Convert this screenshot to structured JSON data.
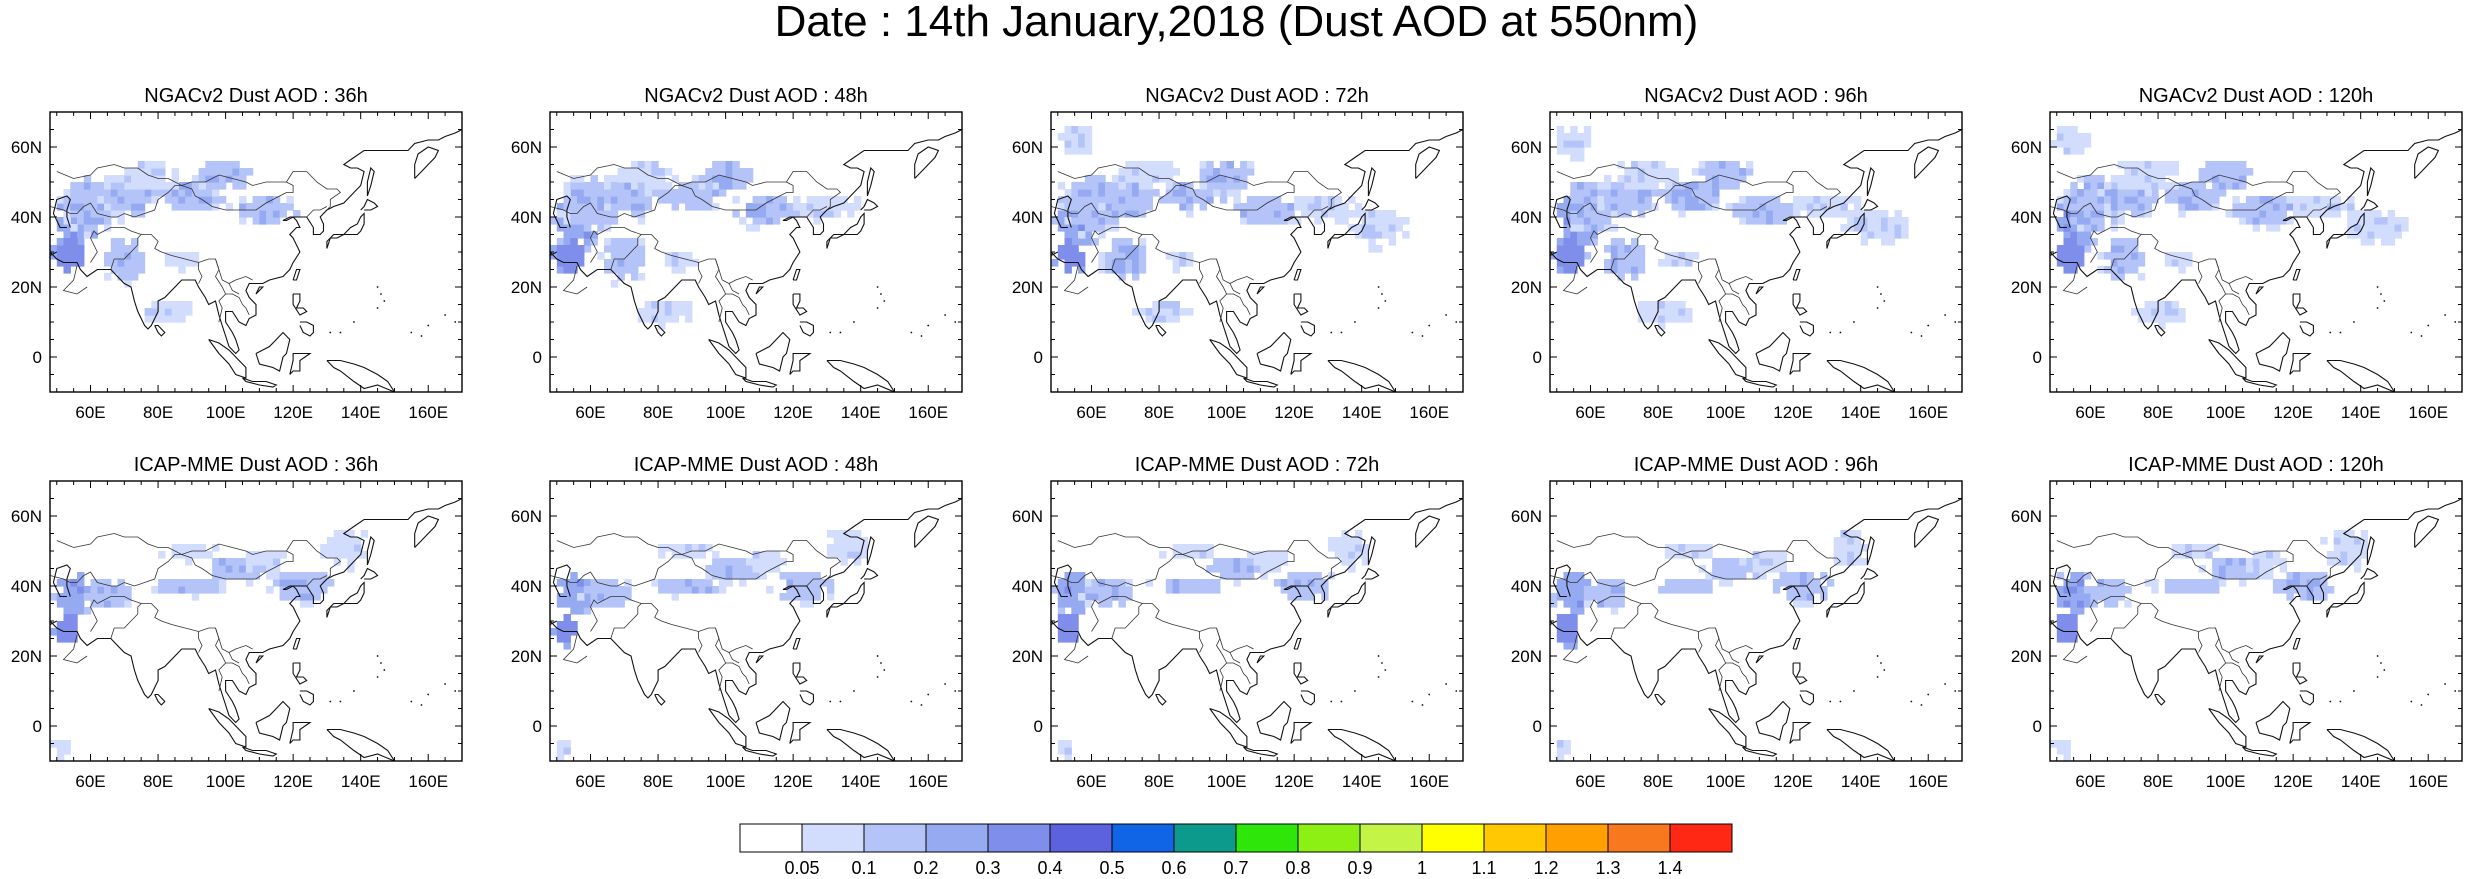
{
  "page": {
    "title": "Date : 14th January,2018 (Dust AOD at 550nm)"
  },
  "axes": {
    "x_ticks": [
      "60E",
      "80E",
      "100E",
      "120E",
      "140E",
      "160E"
    ],
    "x_values": [
      60,
      80,
      100,
      120,
      140,
      160
    ],
    "y_ticks": [
      "60N",
      "40N",
      "20N",
      "0"
    ],
    "y_values": [
      60,
      40,
      20,
      0
    ],
    "lon_range": [
      48,
      170
    ],
    "lat_range": [
      -10,
      70
    ]
  },
  "panels": [
    {
      "title": "NGACv2 Dust AOD : 36h",
      "model": "NGACv2",
      "lead": "36h",
      "intensity": 0.55,
      "extent": 0.75
    },
    {
      "title": "NGACv2 Dust AOD : 48h",
      "model": "NGACv2",
      "lead": "48h",
      "intensity": 0.6,
      "extent": 0.8
    },
    {
      "title": "NGACv2 Dust AOD : 72h",
      "model": "NGACv2",
      "lead": "72h",
      "intensity": 0.8,
      "extent": 1.0
    },
    {
      "title": "NGACv2 Dust AOD : 96h",
      "model": "NGACv2",
      "lead": "96h",
      "intensity": 0.75,
      "extent": 1.0
    },
    {
      "title": "NGACv2 Dust AOD : 120h",
      "model": "NGACv2",
      "lead": "120h",
      "intensity": 0.7,
      "extent": 0.95
    },
    {
      "title": "ICAP-MME Dust AOD : 36h",
      "model": "ICAP-MME",
      "lead": "36h",
      "intensity": 0.5,
      "extent": 0.7
    },
    {
      "title": "ICAP-MME Dust AOD : 48h",
      "model": "ICAP-MME",
      "lead": "48h",
      "intensity": 0.5,
      "extent": 0.85
    },
    {
      "title": "ICAP-MME Dust AOD : 72h",
      "model": "ICAP-MME",
      "lead": "72h",
      "intensity": 0.55,
      "extent": 0.8
    },
    {
      "title": "ICAP-MME Dust AOD : 96h",
      "model": "ICAP-MME",
      "lead": "96h",
      "intensity": 0.55,
      "extent": 0.75
    },
    {
      "title": "ICAP-MME Dust AOD : 120h",
      "model": "ICAP-MME",
      "lead": "120h",
      "intensity": 0.55,
      "extent": 0.75
    }
  ],
  "colorbar": {
    "labels": [
      "0.05",
      "0.1",
      "0.2",
      "0.3",
      "0.4",
      "0.5",
      "0.6",
      "0.7",
      "0.8",
      "0.9",
      "1",
      "1.1",
      "1.2",
      "1.3",
      "1.4"
    ],
    "colors": [
      "#ffffff",
      "#d2dcfc",
      "#b4c4f8",
      "#96aaf2",
      "#7f8eea",
      "#5c62dd",
      "#1064e6",
      "#0c9a8c",
      "#2ee60a",
      "#8cf014",
      "#c4f446",
      "#ffff00",
      "#ffc800",
      "#ffa000",
      "#f8781e",
      "#ff2814"
    ]
  },
  "dust_colors": [
    "#d2dcfc",
    "#b4c4f8",
    "#96aaf2",
    "#7f8eea"
  ]
}
